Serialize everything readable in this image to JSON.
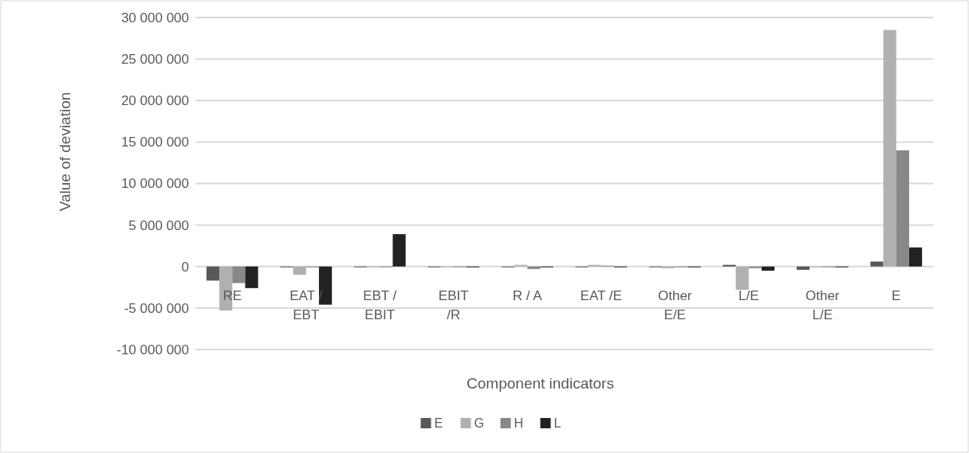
{
  "chart_data": {
    "type": "bar",
    "xlabel": "Component indicators",
    "ylabel": "Value of deviation",
    "categories": [
      "RE",
      "EAT / EBT",
      "EBT / EBIT",
      "EBIT /R",
      "R / A",
      "EAT /E",
      "Other E/E",
      "L/E",
      "Other L/E",
      "E"
    ],
    "series": [
      {
        "name": "E",
        "color": "#595959",
        "values": [
          -1700000,
          0,
          0,
          0,
          0,
          0,
          0,
          200000,
          -400000,
          600000
        ]
      },
      {
        "name": "G",
        "color": "#b0b0b0",
        "values": [
          -5300000,
          -1000000,
          0,
          0,
          200000,
          200000,
          -200000,
          -2800000,
          0,
          28500000
        ]
      },
      {
        "name": "H",
        "color": "#888888",
        "values": [
          -2000000,
          0,
          0,
          0,
          -300000,
          100000,
          0,
          -200000,
          0,
          14000000
        ]
      },
      {
        "name": "L",
        "color": "#222222",
        "values": [
          -2600000,
          -4600000,
          3900000,
          0,
          0,
          0,
          0,
          -500000,
          0,
          2300000
        ]
      }
    ],
    "ylim": [
      -10000000,
      30000000
    ],
    "yticks": [
      {
        "value": -10000000,
        "label": "-10 000 000"
      },
      {
        "value": -5000000,
        "label": "-5 000 000"
      },
      0,
      {
        "value": 5000000,
        "label": "5 000 000"
      },
      {
        "value": 10000000,
        "label": "10 000 000"
      },
      {
        "value": 15000000,
        "label": "15 000 000"
      },
      {
        "value": 20000000,
        "label": "20 000 000"
      },
      {
        "value": 25000000,
        "label": "25 000 000"
      },
      {
        "value": 30000000,
        "label": "30 000 000"
      }
    ],
    "grid": "y",
    "legend": "bottom"
  }
}
